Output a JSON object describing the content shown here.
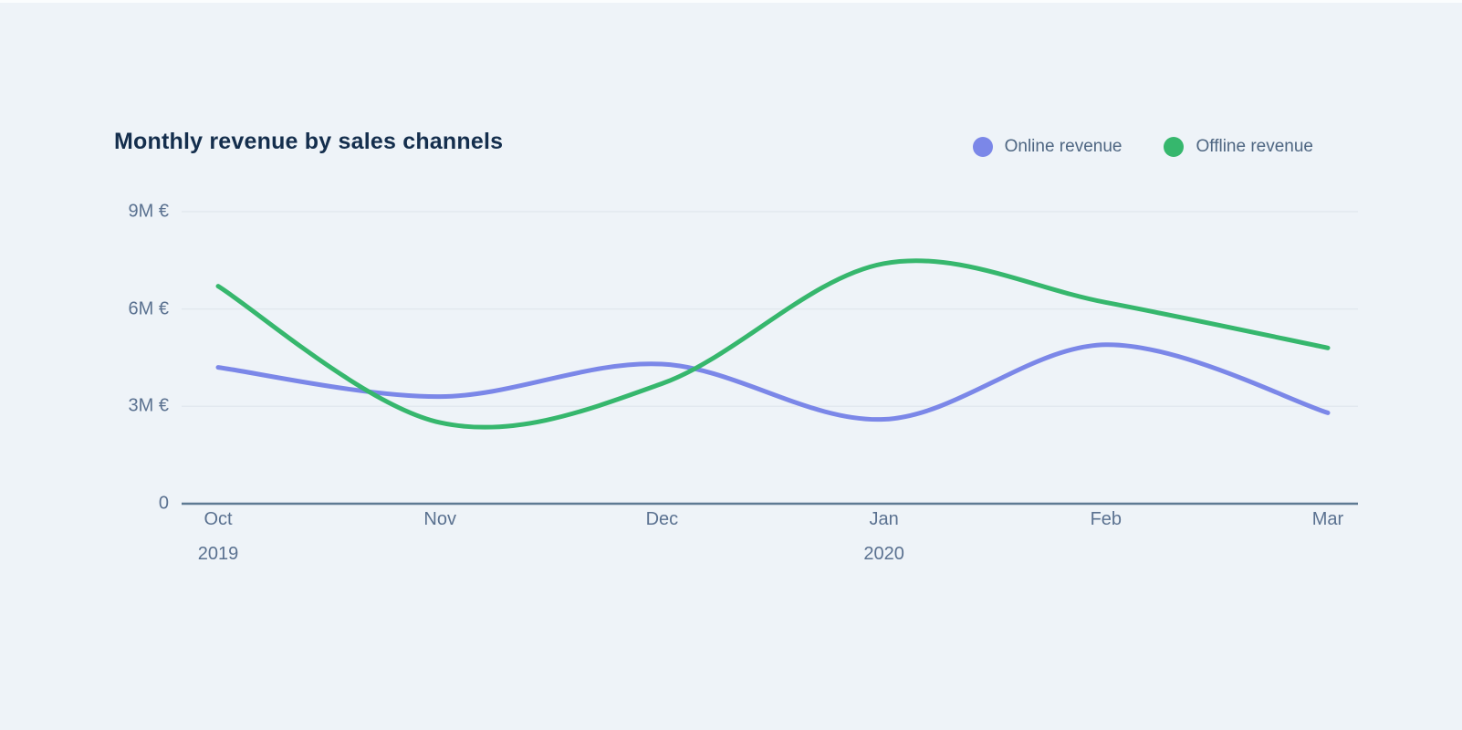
{
  "header": {
    "title": "Monthly revenue by sales channels"
  },
  "legend": {
    "items": [
      {
        "label": "Online revenue",
        "color": "#7b87e8"
      },
      {
        "label": "Offline revenue",
        "color": "#36b76d"
      }
    ]
  },
  "chart_data": {
    "type": "line",
    "title": "Monthly revenue by sales channels",
    "x": [
      "Oct",
      "Nov",
      "Dec",
      "Jan",
      "Feb",
      "Mar"
    ],
    "x_sub_labels": [
      {
        "index": 0,
        "label": "2019"
      },
      {
        "index": 3,
        "label": "2020"
      }
    ],
    "y_ticks": [
      {
        "value": 0,
        "label": "0"
      },
      {
        "value": 3,
        "label": "3M €"
      },
      {
        "value": 6,
        "label": "6M €"
      },
      {
        "value": 9,
        "label": "9M €"
      }
    ],
    "ylim": [
      0,
      9
    ],
    "unit": "M €",
    "grid": true,
    "legend_position": "top-right",
    "line_style": "smooth",
    "series": [
      {
        "name": "Online revenue",
        "color": "#7b87e8",
        "values": [
          4.2,
          3.3,
          4.3,
          2.6,
          4.9,
          2.8
        ]
      },
      {
        "name": "Offline revenue",
        "color": "#36b76d",
        "values": [
          6.7,
          2.5,
          3.7,
          7.4,
          6.2,
          4.8
        ]
      }
    ]
  },
  "colors": {
    "background": "#eef3f8",
    "top_edge": "#fbfdfe",
    "title_text": "#142e4d",
    "axis_text": "#5a7190",
    "legend_text": "#4e6682",
    "gridline": "#e2e8ef",
    "axis_line": "#5e7a93"
  }
}
